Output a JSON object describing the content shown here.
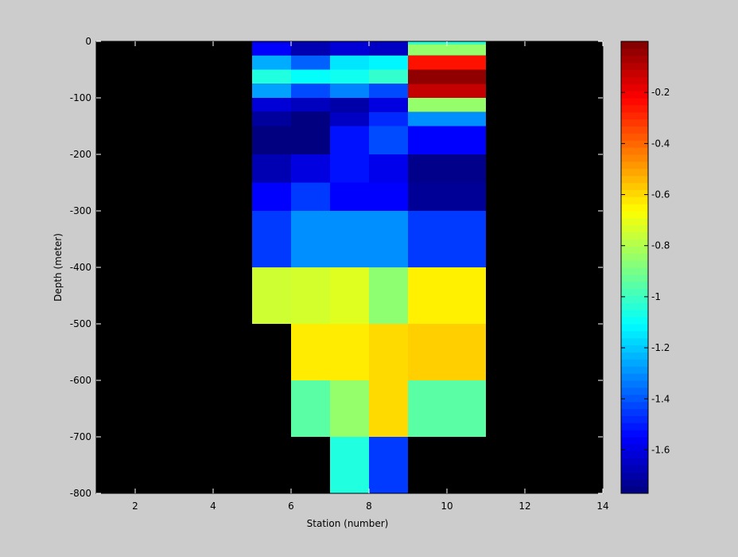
{
  "chart_data": {
    "type": "heatmap",
    "title": "",
    "xlabel": "Station (number)",
    "ylabel": "Depth (meter)",
    "xlim": [
      1,
      14
    ],
    "ylim": [
      -800,
      0
    ],
    "x_ticks": [
      2,
      4,
      6,
      8,
      10,
      12,
      14
    ],
    "y_ticks": [
      0,
      -100,
      -200,
      -300,
      -400,
      -500,
      -600,
      -700,
      -800
    ],
    "background_color": "#000000",
    "colormap": "jet",
    "colorbar": {
      "limits": [
        -1.77,
        0.0
      ],
      "ticks": [
        -0.2,
        -0.4,
        -0.6,
        -0.8,
        -1,
        -1.2,
        -1.4,
        -1.6
      ],
      "tick_labels": [
        "-0.2",
        "-0.4",
        "-0.6",
        "-0.8",
        "-1",
        "-1.2",
        "-1.4",
        "-1.6"
      ]
    },
    "cells": [
      {
        "x": [
          5,
          6
        ],
        "y": [
          -5,
          0
        ],
        "value": -1.58
      },
      {
        "x": [
          5,
          6
        ],
        "y": [
          -25,
          -5
        ],
        "value": -1.55
      },
      {
        "x": [
          5,
          6
        ],
        "y": [
          -50,
          -25
        ],
        "value": -1.25
      },
      {
        "x": [
          5,
          6
        ],
        "y": [
          -75,
          -50
        ],
        "value": -1.05
      },
      {
        "x": [
          5,
          6
        ],
        "y": [
          -100,
          -75
        ],
        "value": -1.27
      },
      {
        "x": [
          5,
          6
        ],
        "y": [
          -125,
          -100
        ],
        "value": -1.62
      },
      {
        "x": [
          5,
          6
        ],
        "y": [
          -150,
          -125
        ],
        "value": -1.72
      },
      {
        "x": [
          5,
          6
        ],
        "y": [
          -200,
          -150
        ],
        "value": -1.77
      },
      {
        "x": [
          5,
          6
        ],
        "y": [
          -250,
          -200
        ],
        "value": -1.68
      },
      {
        "x": [
          5,
          6
        ],
        "y": [
          -300,
          -250
        ],
        "value": -1.55
      },
      {
        "x": [
          5,
          6
        ],
        "y": [
          -400,
          -300
        ],
        "value": -1.45
      },
      {
        "x": [
          5,
          6
        ],
        "y": [
          -500,
          -400
        ],
        "value": -0.75
      },
      {
        "x": [
          6,
          7
        ],
        "y": [
          -25,
          0
        ],
        "value": -1.68
      },
      {
        "x": [
          6,
          7
        ],
        "y": [
          -50,
          -25
        ],
        "value": -1.38
      },
      {
        "x": [
          6,
          7
        ],
        "y": [
          -75,
          -50
        ],
        "value": -1.1
      },
      {
        "x": [
          6,
          7
        ],
        "y": [
          -100,
          -75
        ],
        "value": -1.42
      },
      {
        "x": [
          6,
          7
        ],
        "y": [
          -125,
          -100
        ],
        "value": -1.66
      },
      {
        "x": [
          6,
          7
        ],
        "y": [
          -150,
          -125
        ],
        "value": -1.77
      },
      {
        "x": [
          6,
          7
        ],
        "y": [
          -200,
          -150
        ],
        "value": -1.77
      },
      {
        "x": [
          6,
          7
        ],
        "y": [
          -250,
          -200
        ],
        "value": -1.6
      },
      {
        "x": [
          6,
          7
        ],
        "y": [
          -300,
          -250
        ],
        "value": -1.45
      },
      {
        "x": [
          6,
          7
        ],
        "y": [
          -400,
          -300
        ],
        "value": -1.3
      },
      {
        "x": [
          6,
          7
        ],
        "y": [
          -500,
          -400
        ],
        "value": -0.74
      },
      {
        "x": [
          6,
          7
        ],
        "y": [
          -600,
          -500
        ],
        "value": -0.63
      },
      {
        "x": [
          6,
          7
        ],
        "y": [
          -700,
          -600
        ],
        "value": -0.95
      },
      {
        "x": [
          7,
          8
        ],
        "y": [
          -25,
          0
        ],
        "value": -1.62
      },
      {
        "x": [
          7,
          8
        ],
        "y": [
          -50,
          -25
        ],
        "value": -1.15
      },
      {
        "x": [
          7,
          8
        ],
        "y": [
          -75,
          -50
        ],
        "value": -1.08
      },
      {
        "x": [
          7,
          8
        ],
        "y": [
          -100,
          -75
        ],
        "value": -1.32
      },
      {
        "x": [
          7,
          8
        ],
        "y": [
          -125,
          -100
        ],
        "value": -1.7
      },
      {
        "x": [
          7,
          8
        ],
        "y": [
          -150,
          -125
        ],
        "value": -1.65
      },
      {
        "x": [
          7,
          8
        ],
        "y": [
          -200,
          -150
        ],
        "value": -1.52
      },
      {
        "x": [
          7,
          8
        ],
        "y": [
          -250,
          -200
        ],
        "value": -1.52
      },
      {
        "x": [
          7,
          8
        ],
        "y": [
          -300,
          -250
        ],
        "value": -1.55
      },
      {
        "x": [
          7,
          8
        ],
        "y": [
          -400,
          -300
        ],
        "value": -1.3
      },
      {
        "x": [
          7,
          8
        ],
        "y": [
          -500,
          -400
        ],
        "value": -0.72
      },
      {
        "x": [
          7,
          8
        ],
        "y": [
          -600,
          -500
        ],
        "value": -0.63
      },
      {
        "x": [
          7,
          8
        ],
        "y": [
          -700,
          -600
        ],
        "value": -0.85
      },
      {
        "x": [
          7,
          8
        ],
        "y": [
          -800,
          -700
        ],
        "value": -1.05
      },
      {
        "x": [
          8,
          9
        ],
        "y": [
          -25,
          0
        ],
        "value": -1.65
      },
      {
        "x": [
          8,
          9
        ],
        "y": [
          -50,
          -25
        ],
        "value": -1.12
      },
      {
        "x": [
          8,
          9
        ],
        "y": [
          -75,
          -50
        ],
        "value": -1.02
      },
      {
        "x": [
          8,
          9
        ],
        "y": [
          -100,
          -75
        ],
        "value": -1.42
      },
      {
        "x": [
          8,
          9
        ],
        "y": [
          -125,
          -100
        ],
        "value": -1.6
      },
      {
        "x": [
          8,
          9
        ],
        "y": [
          -150,
          -125
        ],
        "value": -1.48
      },
      {
        "x": [
          8,
          9
        ],
        "y": [
          -200,
          -150
        ],
        "value": -1.42
      },
      {
        "x": [
          8,
          9
        ],
        "y": [
          -250,
          -200
        ],
        "value": -1.58
      },
      {
        "x": [
          8,
          9
        ],
        "y": [
          -300,
          -250
        ],
        "value": -1.55
      },
      {
        "x": [
          8,
          9
        ],
        "y": [
          -400,
          -300
        ],
        "value": -1.3
      },
      {
        "x": [
          8,
          9
        ],
        "y": [
          -500,
          -400
        ],
        "value": -0.86
      },
      {
        "x": [
          8,
          9
        ],
        "y": [
          -600,
          -500
        ],
        "value": -0.6
      },
      {
        "x": [
          8,
          9
        ],
        "y": [
          -700,
          -600
        ],
        "value": -0.6
      },
      {
        "x": [
          8,
          9
        ],
        "y": [
          -800,
          -700
        ],
        "value": -1.45
      },
      {
        "x": [
          9,
          11
        ],
        "y": [
          -5,
          0
        ],
        "value": -1.05
      },
      {
        "x": [
          9,
          11
        ],
        "y": [
          -25,
          -5
        ],
        "value": -0.85
      },
      {
        "x": [
          9,
          11
        ],
        "y": [
          -50,
          -25
        ],
        "value": -0.25
      },
      {
        "x": [
          9,
          11
        ],
        "y": [
          -75,
          -50
        ],
        "value": -0.03
      },
      {
        "x": [
          9,
          11
        ],
        "y": [
          -100,
          -75
        ],
        "value": -0.12
      },
      {
        "x": [
          9,
          11
        ],
        "y": [
          -125,
          -100
        ],
        "value": -0.85
      },
      {
        "x": [
          9,
          11
        ],
        "y": [
          -150,
          -125
        ],
        "value": -1.3
      },
      {
        "x": [
          9,
          11
        ],
        "y": [
          -200,
          -150
        ],
        "value": -1.55
      },
      {
        "x": [
          9,
          11
        ],
        "y": [
          -250,
          -200
        ],
        "value": -1.75
      },
      {
        "x": [
          9,
          11
        ],
        "y": [
          -300,
          -250
        ],
        "value": -1.73
      },
      {
        "x": [
          9,
          11
        ],
        "y": [
          -400,
          -300
        ],
        "value": -1.45
      },
      {
        "x": [
          9,
          11
        ],
        "y": [
          -500,
          -400
        ],
        "value": -0.64
      },
      {
        "x": [
          9,
          11
        ],
        "y": [
          -600,
          -500
        ],
        "value": -0.58
      },
      {
        "x": [
          9,
          11
        ],
        "y": [
          -700,
          -600
        ],
        "value": -0.95
      }
    ]
  }
}
